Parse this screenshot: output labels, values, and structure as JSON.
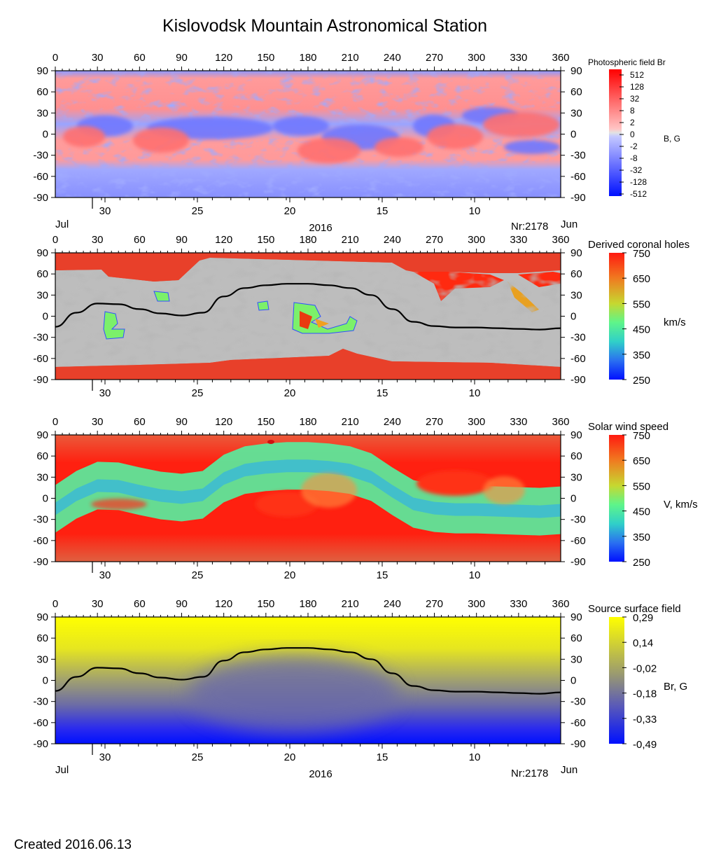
{
  "title": "Kislovodsk Mountain Astronomical Station",
  "created": "Created  2016.06.13",
  "year_label": "2016",
  "rotation_label": "Nr:2178",
  "month_left": "Jul",
  "month_right": "Jun",
  "longitude_ticks": [
    "0",
    "30",
    "60",
    "90",
    "120",
    "150",
    "180",
    "210",
    "240",
    "270",
    "300",
    "330",
    "360"
  ],
  "latitude_ticks": [
    "90",
    "60",
    "30",
    "0",
    "-30",
    "-60",
    "-90"
  ],
  "day_ticks": [
    "30",
    "25",
    "20",
    "15",
    "10"
  ],
  "colors": {
    "photo_pos": "#ff2020",
    "photo_neg": "#2030ff",
    "coronal_bg": "#e84828",
    "coronal_gray_light": "#bdbdbd",
    "coronal_gray_dark": "#7a7a7a",
    "wind_fast": "#ff2010",
    "wind_slow": "#30b8d0",
    "source_pos": "#ffff00",
    "source_neg": "#0010ff",
    "neutral_line": "#000000"
  },
  "panels": [
    {
      "id": "photospheric",
      "colorbar_title": "Photospheric field Br",
      "colorbar_unit": "B, G",
      "colorbar_ticks": [
        "512",
        "128",
        "32",
        "8",
        "2",
        "0",
        "-2",
        "-8",
        "-32",
        "-128",
        "-512"
      ],
      "neutral_line": false
    },
    {
      "id": "coronal-holes",
      "colorbar_title": "Derived coronal holes",
      "colorbar_unit": "km/s",
      "colorbar_ticks": [
        "750",
        "650",
        "550",
        "450",
        "350",
        "250"
      ],
      "neutral_line": true
    },
    {
      "id": "solar-wind",
      "colorbar_title": "Solar wind speed",
      "colorbar_unit": "V, km/s",
      "colorbar_ticks": [
        "750",
        "650",
        "550",
        "450",
        "350",
        "250"
      ],
      "neutral_line": false
    },
    {
      "id": "source-surface",
      "colorbar_title": "Source surface field",
      "colorbar_unit": "Br, G",
      "colorbar_ticks": [
        "0,29",
        "0,14",
        "-0,02",
        "-0,18",
        "-0,33",
        "-0,49"
      ],
      "neutral_line": true
    }
  ],
  "chart_data": {
    "type": "heatmap",
    "xlabel": "",
    "ylabel": "",
    "xlim": [
      0,
      360
    ],
    "ylim": [
      -90,
      90
    ],
    "neutral_line": {
      "x": [
        0,
        15,
        30,
        45,
        60,
        75,
        90,
        105,
        120,
        135,
        150,
        165,
        180,
        195,
        210,
        225,
        240,
        255,
        270,
        285,
        300,
        315,
        330,
        345,
        360
      ],
      "y": [
        -15,
        5,
        18,
        17,
        10,
        4,
        1,
        5,
        28,
        40,
        44,
        46,
        46,
        44,
        40,
        30,
        10,
        -8,
        -14,
        -16,
        -16,
        -17,
        -18,
        -19,
        -17
      ]
    }
  }
}
